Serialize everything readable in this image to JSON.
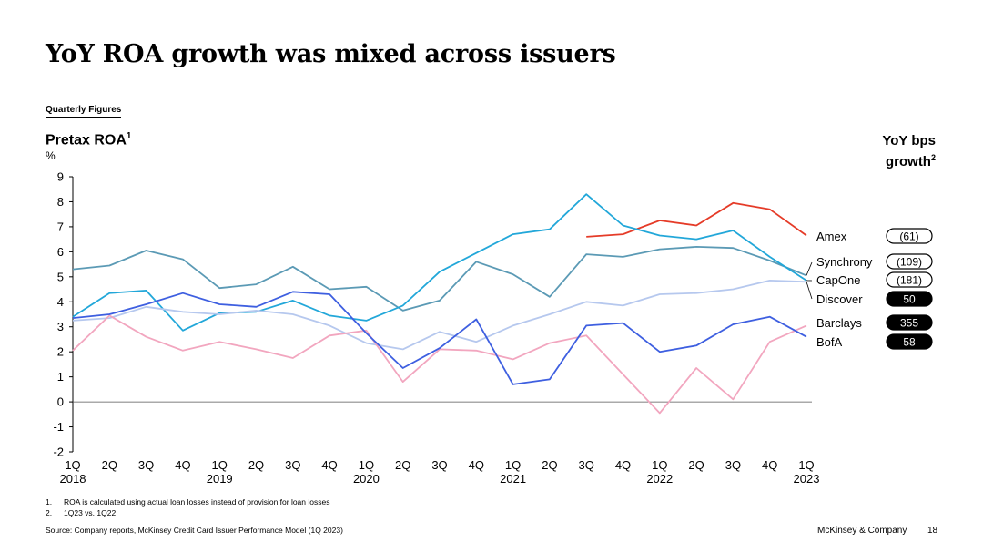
{
  "title": "YoY ROA growth was mixed across issuers",
  "subtitle": "Quarterly Figures",
  "yoy_header": {
    "line1": "YoY bps",
    "line2": "growth",
    "sup": "2"
  },
  "footnotes": [
    {
      "num": "1.",
      "text": "ROA is calculated using actual loan losses instead of provision for loan losses"
    },
    {
      "num": "2.",
      "text": "1Q23 vs. 1Q22"
    }
  ],
  "source": "Source: Company reports, McKinsey Credit Card Issuer Performance Model (1Q 2023)",
  "brand": "McKinsey & Company",
  "page_number": "18",
  "chart_data": {
    "type": "line",
    "title": "Pretax ROA",
    "title_sup": "1",
    "ylabel": "%",
    "xlabel": "",
    "ylim": [
      -2,
      9
    ],
    "yticks": [
      9,
      8,
      7,
      6,
      5,
      4,
      3,
      2,
      1,
      0,
      -1,
      -2
    ],
    "x": [
      "1Q",
      "2Q",
      "3Q",
      "4Q",
      "1Q",
      "2Q",
      "3Q",
      "4Q",
      "1Q",
      "2Q",
      "3Q",
      "4Q",
      "1Q",
      "2Q",
      "3Q",
      "4Q",
      "1Q",
      "2Q",
      "3Q",
      "4Q",
      "1Q"
    ],
    "year_labels": [
      {
        "index": 0,
        "label": "2018"
      },
      {
        "index": 4,
        "label": "2019"
      },
      {
        "index": 8,
        "label": "2020"
      },
      {
        "index": 12,
        "label": "2021"
      },
      {
        "index": 16,
        "label": "2022"
      },
      {
        "index": 20,
        "label": "2023"
      }
    ],
    "series": [
      {
        "name": "Amex",
        "color": "#e53b28",
        "yoy": "(61)",
        "values": [
          null,
          null,
          null,
          null,
          null,
          null,
          null,
          null,
          null,
          null,
          null,
          null,
          null,
          null,
          6.6,
          6.7,
          7.25,
          7.05,
          7.95,
          7.7,
          6.65
        ]
      },
      {
        "name": "Synchrony",
        "color": "#5b9ab5",
        "yoy": "(109)",
        "values": [
          5.3,
          5.45,
          6.05,
          5.7,
          4.55,
          4.7,
          5.4,
          4.5,
          4.6,
          3.65,
          4.05,
          5.6,
          5.1,
          4.2,
          5.9,
          5.8,
          6.1,
          6.2,
          6.15,
          5.65,
          5.05
        ]
      },
      {
        "name": "CapOne",
        "color": "#22a7d9",
        "yoy": "(181)",
        "values": [
          3.4,
          4.35,
          4.45,
          2.85,
          3.55,
          3.6,
          4.05,
          3.45,
          3.25,
          3.85,
          5.2,
          5.95,
          6.7,
          6.9,
          8.3,
          7.05,
          6.65,
          6.5,
          6.85,
          5.8,
          4.85
        ]
      },
      {
        "name": "Discover",
        "color": "#b6c8ee",
        "yoy": "50",
        "values": [
          3.25,
          3.35,
          3.8,
          3.6,
          3.5,
          3.65,
          3.5,
          3.05,
          2.35,
          2.1,
          2.8,
          2.4,
          3.05,
          3.5,
          4.0,
          3.85,
          4.3,
          4.35,
          4.5,
          4.85,
          4.8
        ]
      },
      {
        "name": "Barclays",
        "color": "#f2a6bf",
        "yoy": "355",
        "values": [
          2.05,
          3.45,
          2.6,
          2.05,
          2.4,
          2.1,
          1.75,
          2.65,
          2.85,
          0.8,
          2.1,
          2.05,
          1.7,
          2.35,
          2.65,
          1.1,
          -0.45,
          1.35,
          0.1,
          2.4,
          3.05
        ]
      },
      {
        "name": "BofA",
        "color": "#3e5fe0",
        "yoy": "58",
        "values": [
          3.35,
          3.5,
          3.9,
          4.35,
          3.9,
          3.8,
          4.4,
          4.3,
          2.75,
          1.35,
          2.15,
          3.3,
          0.7,
          0.9,
          3.05,
          3.15,
          2.0,
          2.25,
          3.1,
          3.4,
          2.6
        ]
      }
    ]
  }
}
